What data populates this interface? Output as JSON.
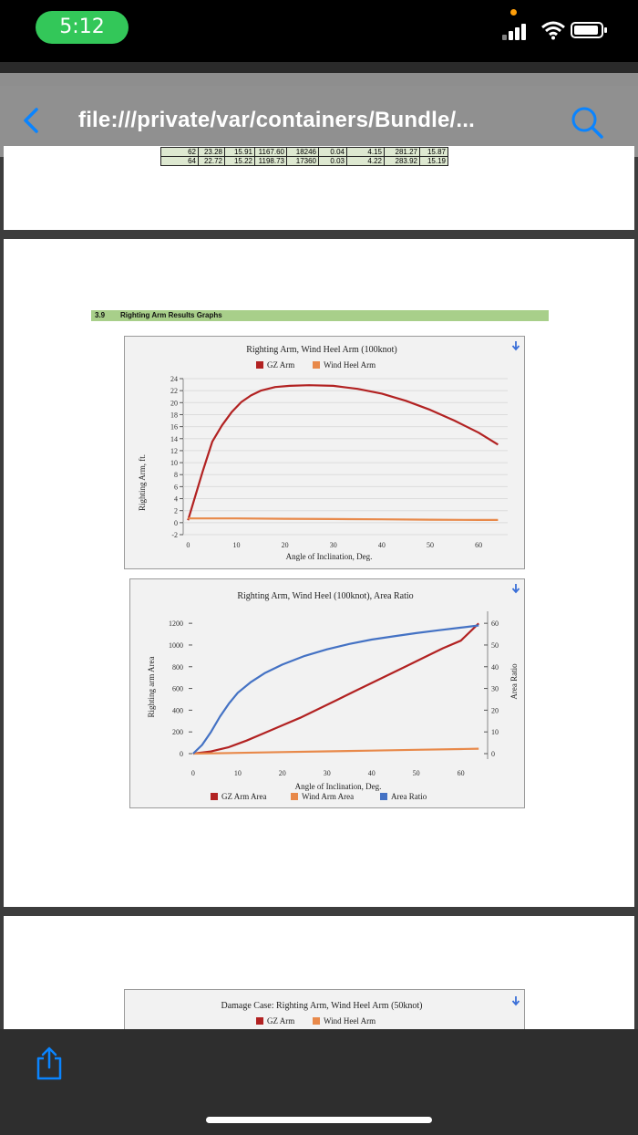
{
  "status_bar": {
    "time": "5:12"
  },
  "nav": {
    "url": "file:///private/var/containers/Bundle/..."
  },
  "table_rows": [
    [
      "62",
      "23.28",
      "15.91",
      "1167.60",
      "18246",
      "0.04",
      "4.15",
      "281.27",
      "15.87"
    ],
    [
      "64",
      "22.72",
      "15.22",
      "1198.73",
      "17360",
      "0.03",
      "4.22",
      "283.92",
      "15.19"
    ]
  ],
  "section": {
    "number": "3.9",
    "title": "Righting Arm Results Graphs"
  },
  "chart_data": [
    {
      "type": "line",
      "title": "Righting Arm, Wind Heel Arm (100knot)",
      "xlabel": "Angle of Inclination, Deg.",
      "ylabel": "Righting Arm, ft.",
      "xlim": [
        -1,
        66
      ],
      "ylim": [
        -2,
        24
      ],
      "xticks": [
        "0",
        "10",
        "20",
        "30",
        "40",
        "50",
        "60"
      ],
      "yticks": [
        "-2",
        "0",
        "2",
        "4",
        "6",
        "8",
        "10",
        "12",
        "14",
        "16",
        "18",
        "20",
        "22",
        "24"
      ],
      "grid": true,
      "legend_position": "top",
      "series": [
        {
          "name": "GZ Arm",
          "color": "#b22222",
          "x": [
            0,
            3,
            5,
            7,
            9,
            11,
            13,
            15,
            18,
            21,
            25,
            30,
            35,
            40,
            45,
            50,
            55,
            60,
            64
          ],
          "y": [
            0.4,
            8.5,
            13.5,
            16.2,
            18.4,
            20.1,
            21.2,
            22.0,
            22.6,
            22.8,
            22.9,
            22.8,
            22.3,
            21.5,
            20.3,
            18.8,
            17.0,
            15.0,
            13.0
          ]
        },
        {
          "name": "Wind Heel Arm",
          "color": "#e8894a",
          "x": [
            0,
            10,
            20,
            30,
            40,
            50,
            60,
            64
          ],
          "y": [
            0.7,
            0.7,
            0.65,
            0.6,
            0.55,
            0.5,
            0.45,
            0.45
          ]
        }
      ]
    },
    {
      "type": "line",
      "title": "Righting Arm, Wind Heel (100knot), Area Ratio",
      "xlabel": "Angle of Inclination, Deg.",
      "ylabel": "Righting arm Area",
      "y2label": "Area Ratio",
      "xlim": [
        -1,
        66
      ],
      "ylim": [
        0,
        1260
      ],
      "y2lim": [
        0,
        63
      ],
      "xticks": [
        "0",
        "10",
        "20",
        "30",
        "40",
        "50",
        "60"
      ],
      "yticks": [
        "0",
        "200",
        "400",
        "600",
        "800",
        "1000",
        "1200"
      ],
      "y2ticks": [
        "0",
        "10",
        "20",
        "30",
        "40",
        "50",
        "60"
      ],
      "grid": false,
      "legend_position": "bottom",
      "series": [
        {
          "name": "GZ Arm Area",
          "color": "#b22222",
          "axis": "left",
          "x": [
            0,
            4,
            8,
            12,
            16,
            20,
            24,
            28,
            32,
            36,
            40,
            44,
            48,
            52,
            56,
            60,
            64
          ],
          "y": [
            0,
            20,
            60,
            120,
            190,
            260,
            330,
            410,
            490,
            570,
            650,
            730,
            810,
            890,
            970,
            1040,
            1199
          ]
        },
        {
          "name": "Wind Arm Area",
          "color": "#e8894a",
          "axis": "left",
          "x": [
            0,
            10,
            20,
            30,
            40,
            50,
            60,
            64
          ],
          "y": [
            0,
            7,
            14,
            21,
            28,
            35,
            42,
            45
          ]
        },
        {
          "name": "Area Ratio",
          "color": "#4472c4",
          "axis": "right",
          "x": [
            0,
            2,
            4,
            6,
            8,
            10,
            13,
            16,
            20,
            25,
            30,
            35,
            40,
            45,
            50,
            55,
            60,
            64
          ],
          "y": [
            0,
            4,
            10,
            17,
            23,
            28,
            33,
            37,
            41,
            45,
            48,
            50.5,
            52.5,
            54,
            55.5,
            56.8,
            58,
            59
          ]
        }
      ]
    },
    {
      "type": "line",
      "title": "Damage Case: Righting Arm, Wind Heel Arm (50knot)",
      "legend_position": "top",
      "series": [
        {
          "name": "GZ Arm",
          "color": "#b22222"
        },
        {
          "name": "Wind Heel Arm",
          "color": "#e8894a"
        }
      ]
    }
  ]
}
